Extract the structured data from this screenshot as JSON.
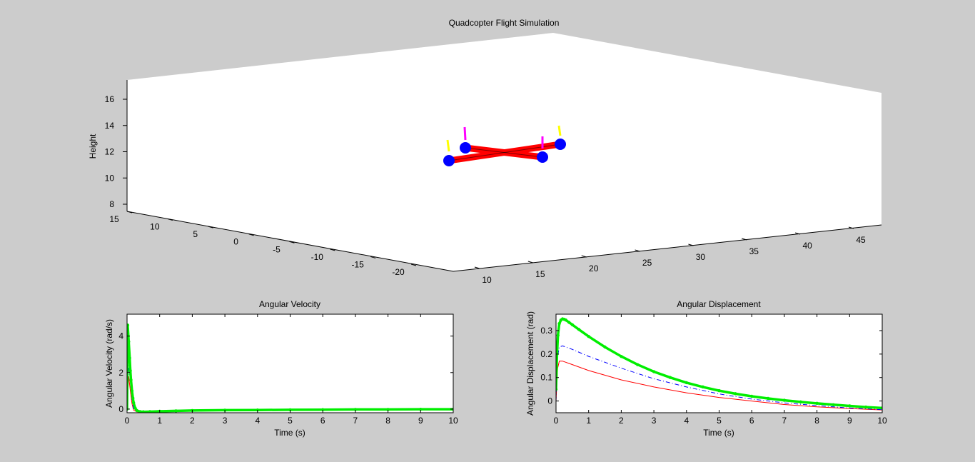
{
  "figure": {
    "background": "#cccccc",
    "axes_background": "#ffffff"
  },
  "chart_data": [
    {
      "type": "scatter",
      "subtype": "3d",
      "title": "Quadcopter Flight Simulation",
      "xlabel": "",
      "ylabel": "",
      "zlabel": "Height",
      "x_ticks": [
        10,
        15,
        20,
        25,
        30,
        35,
        40,
        45
      ],
      "y_ticks": [
        15,
        10,
        5,
        0,
        -5,
        -10,
        -15,
        -20
      ],
      "z_ticks": [
        8,
        10,
        12,
        14,
        16
      ],
      "grid": false,
      "quadcopter": {
        "arm_color": "#ff0000",
        "motor_color": "#0000ff",
        "thrust_colors": [
          "#ffff00",
          "#ff00ff"
        ]
      }
    },
    {
      "type": "line",
      "title": "Angular Velocity",
      "xlabel": "Time (s)",
      "ylabel": "Angular Velocity (rad/s)",
      "xlim": [
        0,
        10
      ],
      "ylim": [
        -0.2,
        5.2
      ],
      "x_ticks": [
        0,
        1,
        2,
        3,
        4,
        5,
        6,
        7,
        8,
        9,
        10
      ],
      "y_ticks": [
        0,
        2,
        4
      ],
      "grid": false,
      "series": [
        {
          "color": "#ff0000",
          "style": "solid",
          "marker": "none",
          "x": [
            0,
            0.05,
            0.1,
            0.15,
            0.2,
            0.3,
            0.4,
            0.6,
            1,
            2,
            3,
            4,
            5,
            6,
            7,
            8,
            9,
            10
          ],
          "y": [
            0,
            1.8,
            1.0,
            0.3,
            -0.05,
            -0.15,
            -0.15,
            -0.13,
            -0.12,
            -0.09,
            -0.07,
            -0.05,
            -0.04,
            -0.03,
            -0.02,
            -0.02,
            -0.01,
            -0.01
          ]
        },
        {
          "color": "#0000ff",
          "style": "dashdot",
          "marker": "none",
          "x": [
            0,
            0.05,
            0.1,
            0.15,
            0.2,
            0.3,
            0.4,
            0.6,
            1,
            2,
            3,
            4,
            5,
            6,
            7,
            8,
            9,
            10
          ],
          "y": [
            0,
            2.4,
            1.5,
            0.5,
            0.0,
            -0.12,
            -0.14,
            -0.13,
            -0.11,
            -0.08,
            -0.06,
            -0.04,
            -0.03,
            -0.02,
            -0.02,
            -0.01,
            -0.01,
            -0.01
          ]
        },
        {
          "color": "#00ee00",
          "style": "solid",
          "marker": "dot",
          "x": [
            0,
            0.02,
            0.05,
            0.08,
            0.1,
            0.12,
            0.15,
            0.18,
            0.2,
            0.25,
            0.3,
            0.4,
            0.5,
            0.7,
            1,
            1.5,
            2,
            3,
            4,
            5,
            6,
            7,
            8,
            9,
            10
          ],
          "y": [
            0,
            4.6,
            3.7,
            2.8,
            2.1,
            1.6,
            1.0,
            0.6,
            0.35,
            0.05,
            -0.08,
            -0.14,
            -0.15,
            -0.14,
            -0.12,
            -0.1,
            -0.08,
            -0.06,
            -0.05,
            -0.04,
            -0.03,
            -0.02,
            -0.02,
            -0.01,
            -0.01
          ]
        }
      ]
    },
    {
      "type": "line",
      "title": "Angular Displacement",
      "xlabel": "Time (s)",
      "ylabel": "Angular Displacement (rad)",
      "xlim": [
        0,
        10
      ],
      "ylim": [
        -0.05,
        0.37
      ],
      "x_ticks": [
        0,
        1,
        2,
        3,
        4,
        5,
        6,
        7,
        8,
        9,
        10
      ],
      "y_ticks": [
        0,
        0.1,
        0.2,
        0.3
      ],
      "y_tick_labels": [
        "0",
        "0.1",
        "0.2",
        "0.3"
      ],
      "grid": false,
      "series": [
        {
          "color": "#ff0000",
          "style": "solid",
          "marker": "none",
          "x": [
            0,
            0.05,
            0.1,
            0.2,
            0.5,
            1,
            2,
            3,
            4,
            5,
            6,
            7,
            8,
            9,
            10
          ],
          "y": [
            0,
            0.14,
            0.17,
            0.17,
            0.155,
            0.13,
            0.09,
            0.06,
            0.035,
            0.015,
            0.0,
            -0.015,
            -0.025,
            -0.032,
            -0.038
          ]
        },
        {
          "color": "#0000ff",
          "style": "dashdot",
          "marker": "none",
          "x": [
            0,
            0.05,
            0.1,
            0.2,
            0.5,
            1,
            2,
            3,
            4,
            5,
            6,
            7,
            8,
            9,
            10
          ],
          "y": [
            0,
            0.19,
            0.23,
            0.235,
            0.22,
            0.19,
            0.14,
            0.095,
            0.06,
            0.03,
            0.008,
            -0.008,
            -0.02,
            -0.03,
            -0.037
          ]
        },
        {
          "color": "#00ee00",
          "style": "solid",
          "marker": "dot",
          "x": [
            0,
            0.03,
            0.06,
            0.1,
            0.15,
            0.2,
            0.25,
            0.3,
            0.4,
            0.5,
            0.7,
            1,
            1.5,
            2,
            2.5,
            3,
            3.5,
            4,
            4.5,
            5,
            5.5,
            6,
            6.5,
            7,
            7.5,
            8,
            8.5,
            9,
            9.5,
            10
          ],
          "y": [
            0.05,
            0.2,
            0.28,
            0.33,
            0.345,
            0.35,
            0.348,
            0.345,
            0.335,
            0.325,
            0.305,
            0.275,
            0.23,
            0.19,
            0.155,
            0.125,
            0.1,
            0.078,
            0.06,
            0.044,
            0.031,
            0.02,
            0.011,
            0.003,
            -0.004,
            -0.01,
            -0.016,
            -0.021,
            -0.026,
            -0.03
          ]
        }
      ]
    }
  ]
}
